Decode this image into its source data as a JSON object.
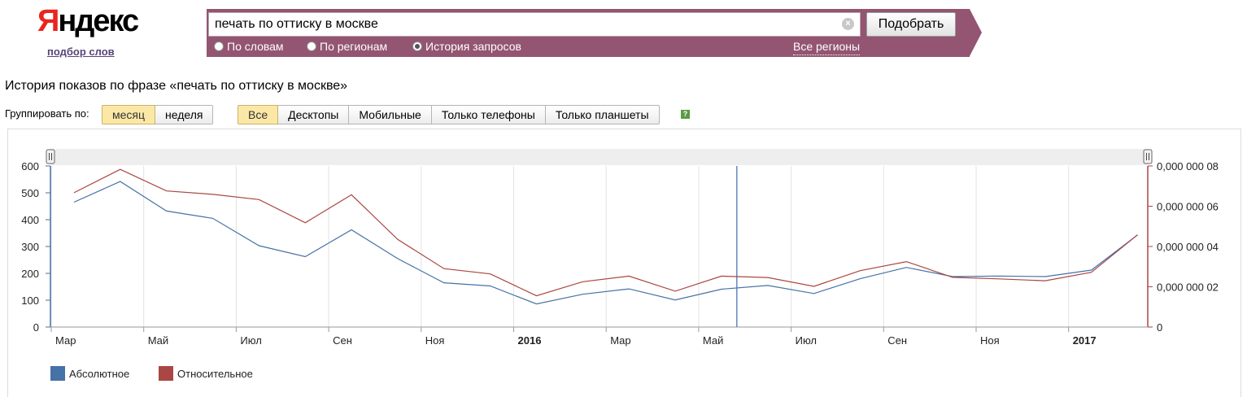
{
  "logo": {
    "text": "Яндекс",
    "subtitle": "подбор слов"
  },
  "search": {
    "value": "печать по оттиску в москве",
    "submit_label": "Подобрать",
    "modes": [
      {
        "label": "По словам",
        "checked": false
      },
      {
        "label": "По регионам",
        "checked": false
      },
      {
        "label": "История запросов",
        "checked": true
      }
    ],
    "regions_label": "Все регионы"
  },
  "colors": {
    "banner": "#935571",
    "absolute": "#4572a7",
    "relative": "#aa4643",
    "marker": "#3c6ab0",
    "active_button": "#fce8a6"
  },
  "heading": "История показов по фразе «печать по оттиску в москве»",
  "grouping": {
    "label": "Группировать по:",
    "options": [
      {
        "label": "месяц",
        "active": true
      },
      {
        "label": "неделя",
        "active": false
      }
    ]
  },
  "devices": {
    "options": [
      {
        "label": "Все",
        "active": true
      },
      {
        "label": "Десктопы",
        "active": false
      },
      {
        "label": "Мобильные",
        "active": false
      },
      {
        "label": "Только телефоны",
        "active": false
      },
      {
        "label": "Только планшеты",
        "active": false
      }
    ],
    "help_icon": "question-icon"
  },
  "chart_data": {
    "type": "line",
    "title": "",
    "x": [
      "2015-03",
      "2015-04",
      "2015-05",
      "2015-06",
      "2015-07",
      "2015-08",
      "2015-09",
      "2015-10",
      "2015-11",
      "2015-12",
      "2016-01",
      "2016-02",
      "2016-03",
      "2016-04",
      "2016-05",
      "2016-06",
      "2016-07",
      "2016-08",
      "2016-09",
      "2016-10",
      "2016-11",
      "2016-12",
      "2017-01",
      "2017-02"
    ],
    "x_tick_labels": [
      {
        "label": "Мар",
        "at": "2015-03",
        "bold": false
      },
      {
        "label": "Май",
        "at": "2015-05",
        "bold": false
      },
      {
        "label": "Июл",
        "at": "2015-07",
        "bold": false
      },
      {
        "label": "Сен",
        "at": "2015-09",
        "bold": false
      },
      {
        "label": "Ноя",
        "at": "2015-11",
        "bold": false
      },
      {
        "label": "2016",
        "at": "2016-01",
        "bold": true
      },
      {
        "label": "Мар",
        "at": "2016-03",
        "bold": false
      },
      {
        "label": "Май",
        "at": "2016-05",
        "bold": false
      },
      {
        "label": "Июл",
        "at": "2016-07",
        "bold": false
      },
      {
        "label": "Сен",
        "at": "2016-09",
        "bold": false
      },
      {
        "label": "Ноя",
        "at": "2016-11",
        "bold": false
      },
      {
        "label": "2017",
        "at": "2017-01",
        "bold": true
      }
    ],
    "y_left": {
      "lim": [
        0,
        600
      ],
      "ticks": [
        "0",
        "100",
        "200",
        "300",
        "400",
        "500",
        "600"
      ]
    },
    "y_right": {
      "lim": [
        0,
        8e-08
      ],
      "ticks": [
        "0",
        "0,000 000 02",
        "0,000 000 04",
        "0,000 000 06",
        "0,000 000 08"
      ]
    },
    "series": [
      {
        "name": "Абсолютное",
        "axis": "left",
        "color": "#4572a7",
        "values": [
          465,
          542,
          432,
          405,
          303,
          262,
          362,
          255,
          165,
          153,
          86,
          122,
          142,
          101,
          141,
          155,
          125,
          180,
          222,
          188,
          190,
          188,
          212,
          343
        ]
      },
      {
        "name": "Относительное",
        "axis": "right",
        "color": "#aa4643",
        "values": [
          6.67e-08,
          7.83e-08,
          6.76e-08,
          6.59e-08,
          6.33e-08,
          5.18e-08,
          6.57e-08,
          4.35e-08,
          2.9e-08,
          2.64e-08,
          1.55e-08,
          2.25e-08,
          2.53e-08,
          1.78e-08,
          2.53e-08,
          2.46e-08,
          2.02e-08,
          2.8e-08,
          3.25e-08,
          2.47e-08,
          2.39e-08,
          2.3e-08,
          2.72e-08,
          4.58e-08
        ]
      }
    ],
    "marker_line": "2016-05-25",
    "grid": true,
    "legend_position": "bottom-left"
  }
}
